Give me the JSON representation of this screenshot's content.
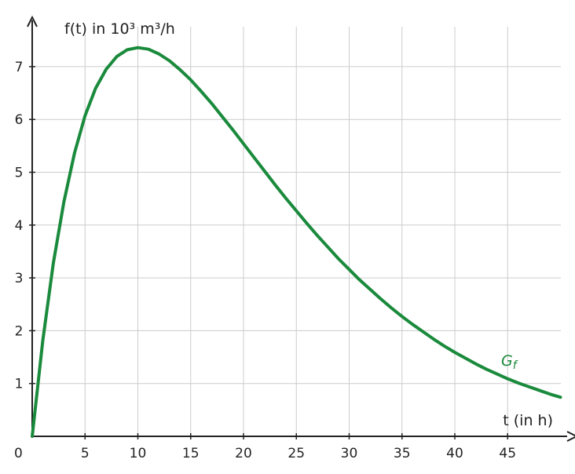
{
  "chart_data": {
    "type": "line",
    "ylabel": "f(t) in 10³ m³/h",
    "xlabel": "t (in h)",
    "origin_label": "0",
    "xlim": [
      0,
      50
    ],
    "ylim": [
      0,
      7.9
    ],
    "x_ticks": [
      5,
      10,
      15,
      20,
      25,
      30,
      35,
      40,
      45
    ],
    "y_ticks": [
      1,
      2,
      3,
      4,
      5,
      6,
      7
    ],
    "grid": true,
    "series": [
      {
        "name": "Gf",
        "label_main": "G",
        "label_sub": "f",
        "color": "#1a8a3c",
        "x": [
          0,
          1,
          2,
          3,
          4,
          5,
          6,
          7,
          8,
          9,
          10,
          11,
          12,
          13,
          14,
          15,
          16,
          17,
          18,
          19,
          20,
          21,
          22,
          23,
          24,
          25,
          26,
          27,
          28,
          29,
          30,
          31,
          32,
          33,
          34,
          35,
          36,
          37,
          38,
          39,
          40,
          41,
          42,
          43,
          44,
          45,
          46,
          47,
          48,
          49,
          50
        ],
        "y": [
          0,
          1.81,
          3.28,
          4.44,
          5.36,
          6.07,
          6.59,
          6.95,
          7.19,
          7.32,
          7.36,
          7.33,
          7.24,
          7.11,
          6.94,
          6.75,
          6.53,
          6.3,
          6.05,
          5.8,
          5.54,
          5.28,
          5.02,
          4.76,
          4.51,
          4.27,
          4.03,
          3.8,
          3.58,
          3.36,
          3.16,
          2.96,
          2.78,
          2.6,
          2.43,
          2.27,
          2.12,
          1.98,
          1.84,
          1.71,
          1.59,
          1.48,
          1.37,
          1.27,
          1.18,
          1.09,
          1.01,
          0.94,
          0.87,
          0.8,
          0.74
        ]
      }
    ]
  }
}
